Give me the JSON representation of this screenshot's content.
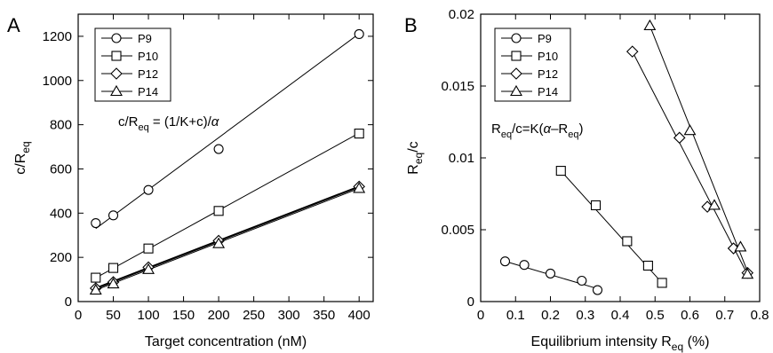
{
  "chart_data": [
    {
      "panel": "A",
      "type": "scatter",
      "xlabel": "Target concentration (nM)",
      "ylabel": "c/R",
      "ylabel_sub": "eq",
      "xlim": [
        0,
        420
      ],
      "ylim": [
        0,
        1300
      ],
      "xticks": [
        0,
        50,
        100,
        150,
        200,
        250,
        300,
        350,
        400
      ],
      "yticks": [
        0,
        200,
        400,
        600,
        800,
        1000,
        1200
      ],
      "grid": false,
      "legend": "top-left",
      "equation": {
        "p1": "c/R",
        "sub1": "eq",
        "p2": " = (1/K+c)/",
        "p3": "α"
      },
      "series": [
        {
          "name": "P9",
          "marker": "circle",
          "x": [
            25,
            50,
            100,
            200,
            400
          ],
          "y": [
            355,
            390,
            505,
            690,
            1210
          ],
          "fit": [
            [
              25,
              330
            ],
            [
              400,
              1212
            ]
          ]
        },
        {
          "name": "P10",
          "marker": "square",
          "x": [
            25,
            50,
            100,
            200,
            400
          ],
          "y": [
            108,
            152,
            240,
            410,
            760
          ],
          "fit": [
            [
              25,
              107
            ],
            [
              400,
              762
            ]
          ]
        },
        {
          "name": "P12",
          "marker": "diamond",
          "x": [
            25,
            50,
            100,
            200,
            400
          ],
          "y": [
            60,
            88,
            155,
            275,
            520
          ],
          "fit": [
            [
              25,
              60
            ],
            [
              400,
              520
            ]
          ]
        },
        {
          "name": "P14",
          "marker": "triangle",
          "x": [
            25,
            50,
            100,
            200,
            400
          ],
          "y": [
            52,
            80,
            145,
            262,
            512
          ],
          "fit": [
            [
              25,
              52
            ],
            [
              400,
              512
            ]
          ]
        }
      ]
    },
    {
      "panel": "B",
      "type": "scatter",
      "xlabel": "Equilibrium intensity R",
      "xlabel_sub": "eq",
      "xlabel_suffix": " (%)",
      "ylabel": "R",
      "ylabel_sub": "eq",
      "ylabel_suffix": "/c",
      "xlim": [
        0,
        0.8
      ],
      "ylim": [
        0,
        0.02
      ],
      "xticks": [
        "0",
        "0.1",
        "0.2",
        "0.3",
        "0.4",
        "0.5",
        "0.6",
        "0.7",
        "0.8"
      ],
      "yticks": [
        "0",
        "0.005",
        "0.01",
        "0.015",
        "0.02"
      ],
      "grid": false,
      "legend": "top-left",
      "equation": {
        "p1": "R",
        "sub1": "eq",
        "p2": "/c=K(",
        "p3": "α",
        "p4": "–R",
        "sub2": "eq",
        "p5": ")"
      },
      "series": [
        {
          "name": "P9",
          "marker": "circle",
          "x": [
            0.07,
            0.125,
            0.2,
            0.29,
            0.335
          ],
          "y": [
            0.0028,
            0.00255,
            0.00195,
            0.00145,
            0.0008
          ],
          "fit": [
            [
              0.07,
              0.0028
            ],
            [
              0.335,
              0.0009
            ]
          ]
        },
        {
          "name": "P10",
          "marker": "square",
          "x": [
            0.23,
            0.33,
            0.42,
            0.48,
            0.52
          ],
          "y": [
            0.0091,
            0.0067,
            0.0042,
            0.0025,
            0.0013
          ],
          "fit": [
            [
              0.23,
              0.0091
            ],
            [
              0.52,
              0.0013
            ]
          ]
        },
        {
          "name": "P12",
          "marker": "diamond",
          "x": [
            0.435,
            0.57,
            0.65,
            0.725,
            0.765
          ],
          "y": [
            0.0174,
            0.0114,
            0.0066,
            0.0037,
            0.002
          ],
          "fit": [
            [
              0.435,
              0.0174
            ],
            [
              0.765,
              0.0019
            ]
          ]
        },
        {
          "name": "P14",
          "marker": "triangle",
          "x": [
            0.485,
            0.6,
            0.67,
            0.745,
            0.765
          ],
          "y": [
            0.0192,
            0.0119,
            0.0067,
            0.0038,
            0.0019
          ],
          "fit": [
            [
              0.485,
              0.0192
            ],
            [
              0.77,
              0.0018
            ]
          ]
        }
      ]
    }
  ]
}
